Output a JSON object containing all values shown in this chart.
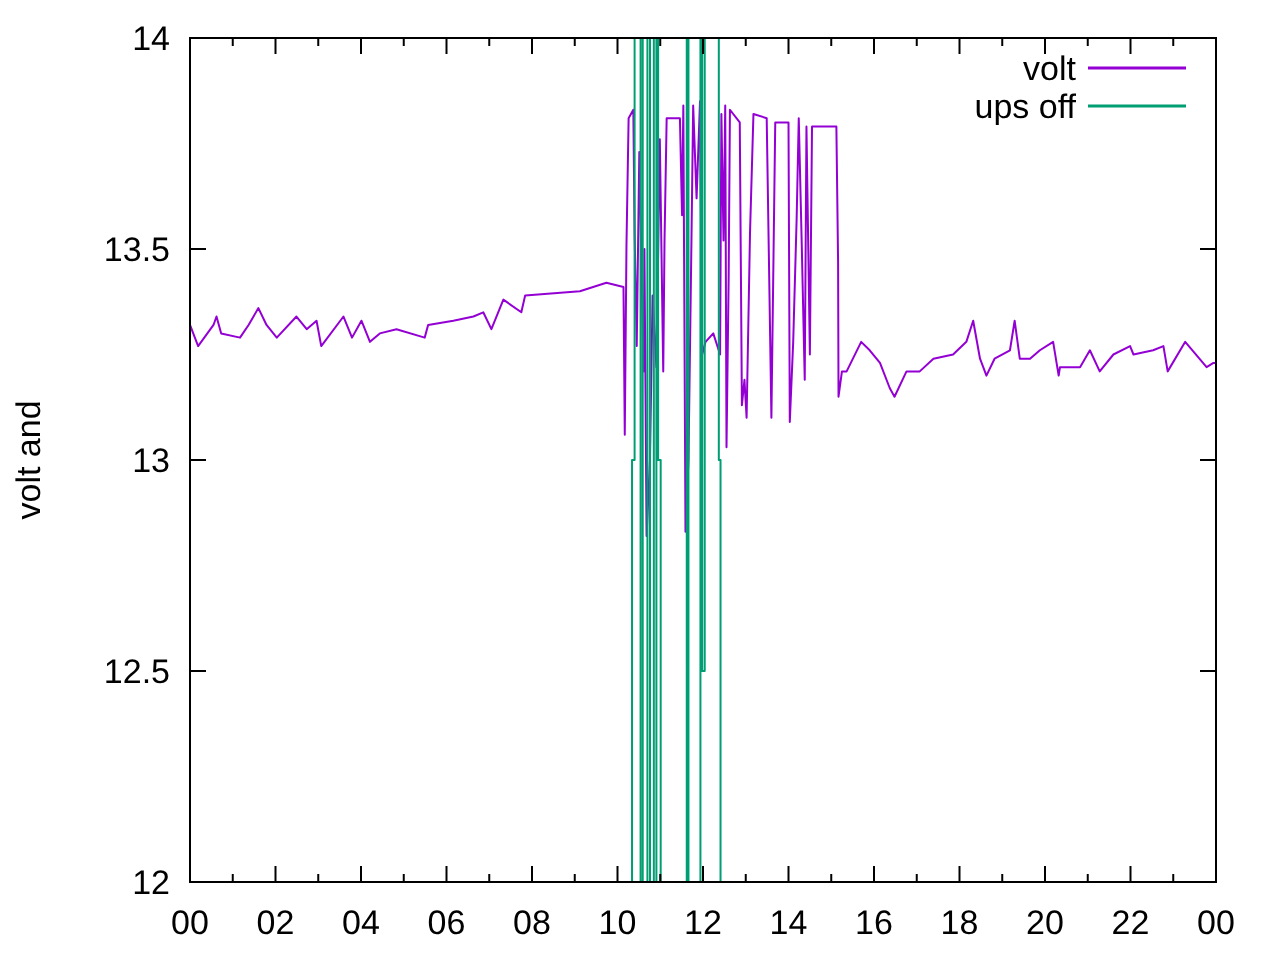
{
  "chart_data": {
    "type": "line",
    "ylabel": "volt and",
    "xlim": [
      0,
      24
    ],
    "ylim": [
      12,
      14
    ],
    "xticks": [
      {
        "value": 0,
        "label": "00"
      },
      {
        "value": 1,
        "label": null
      },
      {
        "value": 2,
        "label": "02"
      },
      {
        "value": 3,
        "label": null
      },
      {
        "value": 4,
        "label": "04"
      },
      {
        "value": 5,
        "label": null
      },
      {
        "value": 6,
        "label": "06"
      },
      {
        "value": 7,
        "label": null
      },
      {
        "value": 8,
        "label": "08"
      },
      {
        "value": 9,
        "label": null
      },
      {
        "value": 10,
        "label": "10"
      },
      {
        "value": 11,
        "label": null
      },
      {
        "value": 12,
        "label": "12"
      },
      {
        "value": 13,
        "label": null
      },
      {
        "value": 14,
        "label": "14"
      },
      {
        "value": 15,
        "label": null
      },
      {
        "value": 16,
        "label": "16"
      },
      {
        "value": 17,
        "label": null
      },
      {
        "value": 18,
        "label": "18"
      },
      {
        "value": 19,
        "label": null
      },
      {
        "value": 20,
        "label": "20"
      },
      {
        "value": 21,
        "label": null
      },
      {
        "value": 22,
        "label": "22"
      },
      {
        "value": 23,
        "label": null
      },
      {
        "value": 24,
        "label": "00"
      }
    ],
    "yticks": [
      12,
      12.5,
      13,
      13.5,
      14
    ],
    "grid": false,
    "legend": "top right",
    "line_style": "solid",
    "series": [
      {
        "name": "volt",
        "color": "#9400d3",
        "x": [
          0,
          0.19,
          0.55,
          0.62,
          0.73,
          1.17,
          1.37,
          1.6,
          1.79,
          2.03,
          2.49,
          2.73,
          2.96,
          3.07,
          3.59,
          3.79,
          4.01,
          4.21,
          4.44,
          4.83,
          5.49,
          5.57,
          6.16,
          6.63,
          6.86,
          7.05,
          7.33,
          7.75,
          7.84,
          9.12,
          9.74,
          10.14,
          10.17,
          10.21,
          10.26,
          10.37,
          10.4,
          10.45,
          10.51,
          10.61,
          10.63,
          10.68,
          10.76,
          10.82,
          10.91,
          10.99,
          11.07,
          11.1,
          11.15,
          11.46,
          11.51,
          11.54,
          11.59,
          11.66,
          11.73,
          11.77,
          11.85,
          11.93,
          11.98,
          12.06,
          12.24,
          12.4,
          12.43,
          12.48,
          12.52,
          12.55,
          12.6,
          12.63,
          12.86,
          12.91,
          12.97,
          13.02,
          13.1,
          13.18,
          13.49,
          13.54,
          13.6,
          13.69,
          14,
          14.03,
          14.11,
          14.19,
          14.24,
          14.31,
          14.38,
          14.42,
          14.5,
          14.55,
          15.12,
          15.16,
          15.17,
          15.25,
          15.36,
          15.7,
          15.9,
          16.14,
          16.37,
          16.48,
          16.76,
          17.07,
          17.39,
          17.85,
          18.16,
          18.32,
          18.48,
          18.63,
          18.82,
          19.18,
          19.29,
          19.41,
          19.65,
          19.88,
          20.19,
          20.32,
          20.35,
          20.82,
          21.05,
          21.28,
          21.6,
          21.99,
          22.07,
          22.53,
          22.77,
          22.87,
          23.28,
          23.78,
          23.94,
          24
        ],
        "values": [
          13.32,
          13.27,
          13.32,
          13.34,
          13.3,
          13.29,
          13.32,
          13.36,
          13.32,
          13.29,
          13.34,
          13.31,
          13.33,
          13.27,
          13.34,
          13.29,
          13.33,
          13.28,
          13.3,
          13.31,
          13.29,
          13.32,
          13.33,
          13.34,
          13.35,
          13.31,
          13.38,
          13.35,
          13.39,
          13.4,
          13.42,
          13.41,
          13.06,
          13.51,
          13.81,
          13.83,
          13.54,
          13.27,
          13.73,
          13.21,
          13.5,
          12.82,
          13,
          13.39,
          13.22,
          13.76,
          13.21,
          13.52,
          13.81,
          13.81,
          13.58,
          13.84,
          12.83,
          13,
          13.52,
          13.84,
          13.62,
          13.85,
          13.25,
          13.28,
          13.3,
          13.25,
          13.82,
          13.52,
          13.84,
          13.03,
          13.43,
          13.83,
          13.8,
          13.13,
          13.19,
          13.1,
          13.54,
          13.82,
          13.81,
          13.49,
          13.1,
          13.8,
          13.8,
          13.09,
          13.28,
          13.57,
          13.81,
          13.51,
          13.19,
          13.79,
          13.25,
          13.79,
          13.79,
          13.47,
          13.15,
          13.21,
          13.21,
          13.28,
          13.26,
          13.23,
          13.17,
          13.15,
          13.21,
          13.21,
          13.24,
          13.25,
          13.28,
          13.33,
          13.24,
          13.2,
          13.24,
          13.26,
          13.33,
          13.24,
          13.24,
          13.26,
          13.28,
          13.2,
          13.22,
          13.22,
          13.26,
          13.21,
          13.25,
          13.27,
          13.25,
          13.26,
          13.27,
          13.21,
          13.28,
          13.22,
          13.23,
          13.23
        ]
      },
      {
        "name": "ups off",
        "color": "#009e73",
        "x": [
          10.34,
          10.34,
          10.4,
          10.4,
          10.54,
          10.54,
          10.59,
          10.59,
          10.7,
          10.7,
          10.76,
          10.76,
          10.85,
          10.85,
          10.91,
          10.91,
          10.95,
          10.95,
          11.01,
          11.01,
          11.3,
          11.62,
          11.62,
          11.66,
          11.66,
          11.94,
          11.94,
          11.98,
          11.98,
          12.04,
          12.04,
          12.37,
          12.37,
          12.41,
          12.41
        ],
        "values": [
          12,
          13,
          13,
          14,
          14,
          12,
          12,
          14,
          14,
          12,
          12,
          14,
          14,
          12,
          12,
          14,
          14,
          13,
          13,
          12,
          null,
          12,
          14,
          14,
          12,
          12,
          14,
          14,
          12.5,
          12.5,
          14,
          14,
          13,
          13,
          12
        ]
      }
    ]
  }
}
